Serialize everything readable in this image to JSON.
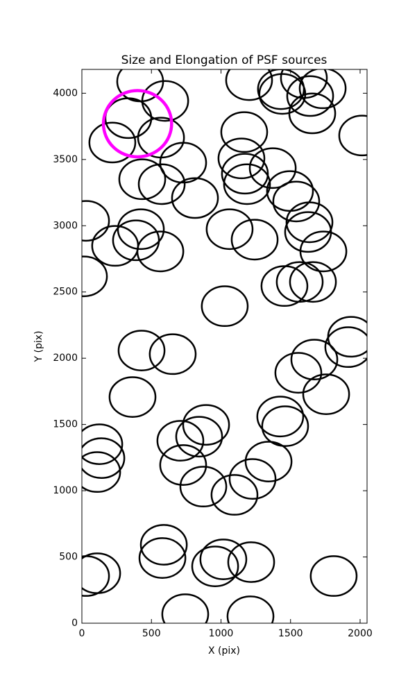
{
  "chart_data": {
    "type": "ellipse-scatter",
    "title": "Size and Elongation of PSF sources",
    "x_label": "X (pix)",
    "y_label": "Y (pix)",
    "xlim": [
      0,
      2050
    ],
    "ylim": [
      0,
      4180
    ],
    "xticks": [
      0,
      500,
      1000,
      1500,
      2000
    ],
    "yticks": [
      0,
      500,
      1000,
      1500,
      2000,
      2500,
      3000,
      3500,
      4000
    ],
    "series": [
      {
        "color": "#000000",
        "width": 330,
        "height": 300,
        "x": [
          419,
          599,
          334,
          219,
          569,
          728,
          434,
          574,
          813,
          30,
          424,
          389,
          239,
          564,
          15,
          1027,
          1062,
          1242,
          1167,
          1147,
          1172,
          1187,
          1372,
          1496,
          1541,
          1636,
          1626,
          1736,
          1456,
          1566,
          1661,
          1202,
          1431,
          1441,
          1596,
          1731,
          1641,
          1656,
          2015,
          1935,
          1915,
          1671,
          1556,
          1756,
          1426,
          1461,
          1342,
          1227,
          1097,
          873,
          728,
          708,
          843,
          893,
          429,
          653,
          364,
          125,
          140,
          110,
          589,
          579,
          958,
          1017,
          1217,
          1810,
          110,
          30,
          743,
          1212
        ],
        "y": [
          4089,
          3942,
          3812,
          3628,
          3665,
          3476,
          3351,
          3314,
          3209,
          3037,
          2974,
          2890,
          2848,
          2806,
          2618,
          2393,
          2974,
          2895,
          3707,
          3508,
          3393,
          3314,
          3435,
          3262,
          3183,
          3026,
          2953,
          2806,
          2545,
          2576,
          2576,
          4099,
          4031,
          3995,
          4115,
          4037,
          3979,
          3848,
          3681,
          2162,
          2084,
          1990,
          1890,
          1728,
          1560,
          1487,
          1220,
          1089,
          969,
          1031,
          1194,
          1377,
          1408,
          1497,
          2058,
          2031,
          1707,
          1351,
          1246,
          1141,
          592,
          492,
          429,
          482,
          461,
          356,
          377,
          356,
          68,
          52
        ]
      },
      {
        "color": "#ff00ff",
        "width": 490,
        "height": 500,
        "x": [
          400
        ],
        "y": [
          3770
        ]
      }
    ]
  }
}
